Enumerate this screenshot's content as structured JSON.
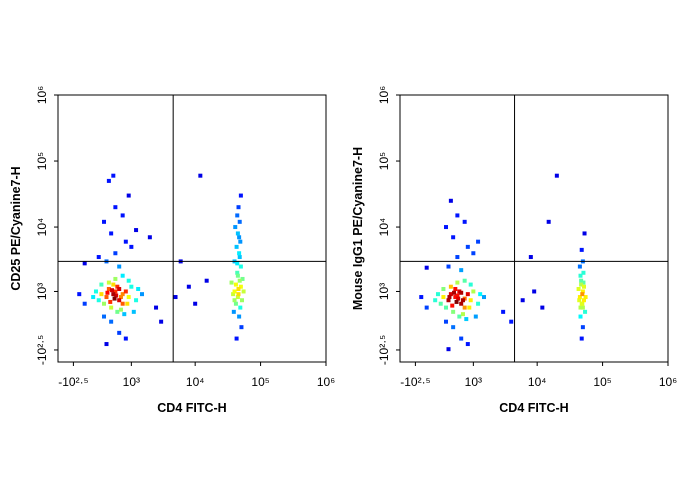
{
  "chart_data": [
    {
      "type": "scatter",
      "x_label": "CD4 FITC-H",
      "y_label": "CD25 PE/Cyanine7-H",
      "xscale": "biexponential",
      "yscale": "biexponential",
      "xlim": [
        -700,
        1000000
      ],
      "ylim": [
        -600,
        1000000
      ],
      "xticks": [
        {
          "value": -316,
          "label": "-10²·⁵"
        },
        {
          "value": 1000,
          "label": "10³"
        },
        {
          "value": 10000,
          "label": "10⁴"
        },
        {
          "value": 100000,
          "label": "10⁵"
        },
        {
          "value": 1000000,
          "label": "10⁶"
        }
      ],
      "yticks": [
        {
          "value": -316,
          "label": "-10²·⁵"
        },
        {
          "value": 1000,
          "label": "10³"
        },
        {
          "value": 10000,
          "label": "10⁴"
        },
        {
          "value": 100000,
          "label": "10⁵"
        },
        {
          "value": 1000000,
          "label": "10⁶"
        }
      ],
      "gates": {
        "x": 4600,
        "y": 3000
      },
      "x": [
        300,
        450,
        600,
        350,
        500,
        700,
        250,
        400,
        550,
        650,
        800,
        320,
        480,
        520,
        380,
        420,
        600,
        700,
        900,
        1000,
        200,
        150,
        100,
        50,
        -100,
        -200,
        250,
        400,
        600,
        800,
        300,
        1200,
        1500,
        1100,
        900,
        700,
        500,
        350,
        450,
        550,
        650,
        750,
        850,
        1300,
        200,
        300,
        500,
        800,
        400,
        600,
        1000,
        250,
        700,
        500,
        900,
        350,
        1200,
        150,
        -100,
        2000,
        450,
        2500,
        5000,
        8000,
        10000,
        6000,
        15000,
        3000,
        12000,
        40000,
        45000,
        50000,
        42000,
        48000,
        38000,
        52000,
        46000,
        44000,
        50000,
        40000,
        47000,
        43000,
        49000,
        45000,
        41000,
        48000,
        44000,
        46000,
        50000,
        39000,
        47000,
        43000,
        51000,
        45000,
        42000,
        55000,
        36000,
        48000,
        44000,
        46000,
        40000,
        49000,
        53000,
        47000
      ],
      "values": [
        800,
        900,
        700,
        1100,
        1000,
        900,
        600,
        500,
        1200,
        800,
        1000,
        950,
        750,
        850,
        650,
        1050,
        1100,
        600,
        800,
        1200,
        900,
        700,
        1000,
        800,
        600,
        900,
        300,
        200,
        0,
        -100,
        -200,
        700,
        900,
        400,
        1500,
        1800,
        1600,
        1400,
        1300,
        400,
        450,
        350,
        600,
        1100,
        1300,
        3000,
        4000,
        6000,
        8000,
        2500,
        5000,
        12000,
        15000,
        20000,
        30000,
        50000,
        9000,
        3500,
        2800,
        7000,
        60000,
        500,
        800,
        1200,
        600,
        3000,
        1500,
        200,
        60000,
        1000,
        800,
        1200,
        600,
        1500,
        900,
        700,
        1100,
        2000,
        2500,
        3000,
        4000,
        5000,
        6000,
        8000,
        10000,
        12000,
        15000,
        20000,
        30000,
        400,
        300,
        -100,
        100,
        1800,
        1300,
        1000,
        1400,
        3500,
        2800,
        900,
        700,
        500,
        1600,
        7000
      ]
    },
    {
      "type": "scatter",
      "x_label": "CD4 FITC-H",
      "y_label": "Mouse IgG1 PE/Cyanine7-H",
      "xscale": "biexponential",
      "yscale": "biexponential",
      "xlim": [
        -700,
        1000000
      ],
      "ylim": [
        -600,
        1000000
      ],
      "xticks": [
        {
          "value": -316,
          "label": "-10²·⁵"
        },
        {
          "value": 1000,
          "label": "10³"
        },
        {
          "value": 10000,
          "label": "10⁴"
        },
        {
          "value": 100000,
          "label": "10⁵"
        },
        {
          "value": 1000000,
          "label": "10⁶"
        }
      ],
      "yticks": [
        {
          "value": -316,
          "label": "-10²·⁵"
        },
        {
          "value": 1000,
          "label": "10³"
        },
        {
          "value": 10000,
          "label": "10⁴"
        },
        {
          "value": 100000,
          "label": "10⁵"
        },
        {
          "value": 1000000,
          "label": "10⁶"
        }
      ],
      "gates": {
        "x": 4500,
        "y": 3000
      },
      "x": [
        300,
        450,
        600,
        350,
        500,
        700,
        250,
        400,
        550,
        650,
        800,
        320,
        480,
        520,
        380,
        420,
        600,
        700,
        900,
        1000,
        200,
        150,
        100,
        50,
        -100,
        -200,
        250,
        400,
        600,
        800,
        300,
        1200,
        1500,
        1100,
        900,
        700,
        500,
        350,
        450,
        550,
        650,
        750,
        850,
        1300,
        200,
        300,
        500,
        800,
        400,
        600,
        1000,
        250,
        700,
        500,
        350,
        1200,
        -100,
        3000,
        6000,
        9000,
        12000,
        8000,
        15000,
        20000,
        4000,
        45000,
        48000,
        50000,
        46000,
        52000,
        44000,
        54000,
        49000,
        47000,
        51000,
        45000,
        50000,
        48000,
        53000,
        46000,
        50000,
        48000,
        55000,
        43000,
        47000,
        52000,
        49000,
        46000,
        51000,
        50000
      ],
      "values": [
        700,
        800,
        600,
        900,
        850,
        750,
        500,
        400,
        1000,
        700,
        900,
        800,
        650,
        750,
        550,
        950,
        950,
        500,
        700,
        1000,
        800,
        600,
        900,
        700,
        500,
        800,
        200,
        100,
        -100,
        -200,
        -300,
        600,
        800,
        300,
        1300,
        1500,
        1400,
        1200,
        1100,
        300,
        350,
        250,
        500,
        900,
        1100,
        2500,
        3500,
        5000,
        7000,
        2200,
        4000,
        10000,
        12000,
        15000,
        25000,
        6000,
        2400,
        400,
        700,
        1000,
        500,
        3500,
        12000,
        60000,
        200,
        800,
        600,
        1000,
        500,
        1200,
        700,
        400,
        900,
        1500,
        2000,
        2500,
        3000,
        4500,
        8000,
        300,
        100,
        -100,
        800,
        1100,
        1300,
        700,
        600,
        1800,
        1400,
        500
      ]
    }
  ]
}
